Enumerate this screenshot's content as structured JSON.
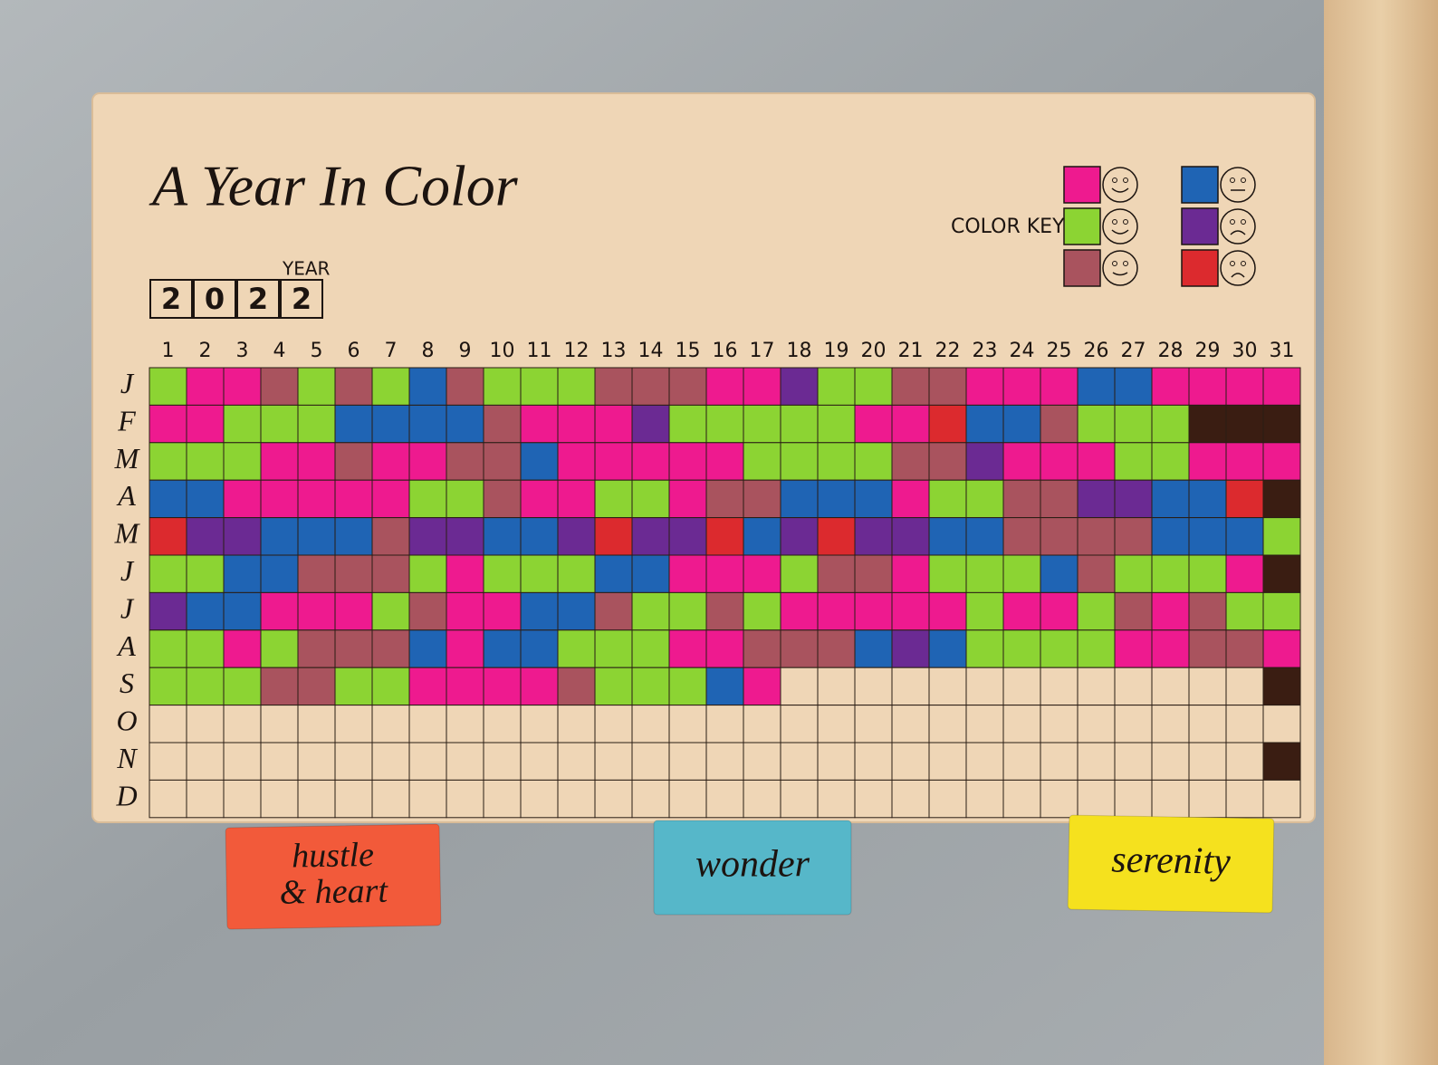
{
  "title": "A Year In Color",
  "year_label": "YEAR",
  "year_digits": [
    "2",
    "0",
    "2",
    "2"
  ],
  "color_key": {
    "label": "COLOR KEY",
    "colors": [
      "#ee1a8f",
      "#8cd433",
      "#a9535e",
      "#1f64b4",
      "#6b2a93",
      "#dc2a2e"
    ]
  },
  "grid": {
    "days": [
      1,
      2,
      3,
      4,
      5,
      6,
      7,
      8,
      9,
      10,
      11,
      12,
      13,
      14,
      15,
      16,
      17,
      18,
      19,
      20,
      21,
      22,
      23,
      24,
      25,
      26,
      27,
      28,
      29,
      30,
      31
    ],
    "months": [
      "J",
      "F",
      "M",
      "A",
      "M",
      "J",
      "J",
      "A",
      "S",
      "O",
      "N",
      "D"
    ],
    "palette": [
      "#ee1a8f",
      "#8cd433",
      "#a9535e",
      "#1f64b4",
      "#6b2a93",
      "#dc2a2e",
      "#3a1d12"
    ],
    "rows": [
      [
        1,
        0,
        0,
        2,
        1,
        2,
        1,
        3,
        2,
        1,
        1,
        1,
        2,
        2,
        2,
        0,
        0,
        4,
        1,
        1,
        2,
        2,
        0,
        0,
        0,
        3,
        3,
        0,
        0,
        0,
        0
      ],
      [
        0,
        0,
        1,
        1,
        1,
        3,
        3,
        3,
        3,
        2,
        0,
        0,
        0,
        4,
        1,
        1,
        1,
        1,
        1,
        0,
        0,
        5,
        3,
        3,
        2,
        1,
        1,
        1,
        6,
        6,
        6
      ],
      [
        1,
        1,
        1,
        0,
        0,
        2,
        0,
        0,
        2,
        2,
        3,
        0,
        0,
        0,
        0,
        0,
        1,
        1,
        1,
        1,
        2,
        2,
        4,
        0,
        0,
        0,
        1,
        1,
        0,
        0,
        0
      ],
      [
        3,
        3,
        0,
        0,
        0,
        0,
        0,
        1,
        1,
        2,
        0,
        0,
        1,
        1,
        0,
        2,
        2,
        3,
        3,
        3,
        0,
        1,
        1,
        2,
        2,
        4,
        4,
        3,
        3,
        5,
        6
      ],
      [
        5,
        4,
        4,
        3,
        3,
        3,
        2,
        4,
        4,
        3,
        3,
        4,
        5,
        4,
        4,
        5,
        3,
        4,
        5,
        4,
        4,
        3,
        3,
        2,
        2,
        2,
        2,
        3,
        3,
        3,
        1
      ],
      [
        1,
        1,
        3,
        3,
        2,
        2,
        2,
        1,
        0,
        1,
        1,
        1,
        3,
        3,
        0,
        0,
        0,
        1,
        2,
        2,
        0,
        1,
        1,
        1,
        3,
        2,
        1,
        1,
        1,
        0,
        6
      ],
      [
        4,
        3,
        3,
        0,
        0,
        0,
        1,
        2,
        0,
        0,
        3,
        3,
        2,
        1,
        1,
        2,
        1,
        0,
        0,
        0,
        0,
        0,
        1,
        0,
        0,
        1,
        2,
        0,
        2,
        1,
        1
      ],
      [
        1,
        1,
        0,
        1,
        2,
        2,
        2,
        3,
        0,
        3,
        3,
        1,
        1,
        1,
        0,
        0,
        2,
        2,
        2,
        3,
        4,
        3,
        1,
        1,
        1,
        1,
        0,
        0,
        2,
        2,
        0
      ],
      [
        1,
        1,
        1,
        2,
        2,
        1,
        1,
        0,
        0,
        0,
        0,
        2,
        1,
        1,
        1,
        3,
        0,
        null,
        null,
        null,
        null,
        null,
        null,
        null,
        null,
        null,
        null,
        null,
        null,
        null,
        6
      ],
      [
        null,
        null,
        null,
        null,
        null,
        null,
        null,
        null,
        null,
        null,
        null,
        null,
        null,
        null,
        null,
        null,
        null,
        null,
        null,
        null,
        null,
        null,
        null,
        null,
        null,
        null,
        null,
        null,
        null,
        null,
        null
      ],
      [
        null,
        null,
        null,
        null,
        null,
        null,
        null,
        null,
        null,
        null,
        null,
        null,
        null,
        null,
        null,
        null,
        null,
        null,
        null,
        null,
        null,
        null,
        null,
        null,
        null,
        null,
        null,
        null,
        null,
        null,
        6
      ],
      [
        null,
        null,
        null,
        null,
        null,
        null,
        null,
        null,
        null,
        null,
        null,
        null,
        null,
        null,
        null,
        null,
        null,
        null,
        null,
        null,
        null,
        null,
        null,
        null,
        null,
        null,
        null,
        null,
        null,
        null,
        null
      ]
    ]
  },
  "blocks": [
    {
      "lines": [
        "hustle",
        "& heart"
      ],
      "color": "#f25a3a"
    },
    {
      "lines": [
        "wonder"
      ],
      "color": "#56b7c9"
    },
    {
      "lines": [
        "serenity"
      ],
      "color": "#f5e11e"
    }
  ]
}
